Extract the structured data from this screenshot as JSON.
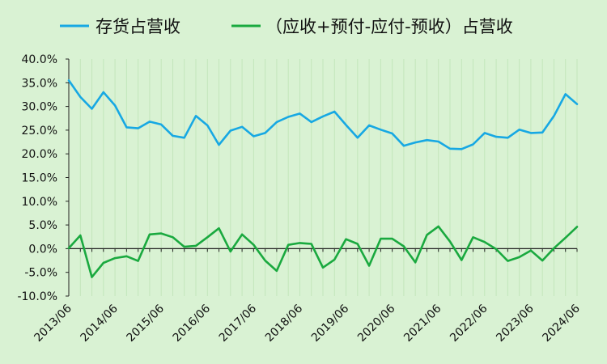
{
  "chart_data": {
    "type": "line",
    "x": [
      "2013/06",
      "2013/09",
      "2013/12",
      "2014/03",
      "2014/06",
      "2014/09",
      "2014/12",
      "2015/03",
      "2015/06",
      "2015/09",
      "2015/12",
      "2016/03",
      "2016/06",
      "2016/09",
      "2016/12",
      "2017/03",
      "2017/06",
      "2017/09",
      "2017/12",
      "2018/03",
      "2018/06",
      "2018/09",
      "2018/12",
      "2019/03",
      "2019/06",
      "2019/09",
      "2019/12",
      "2020/03",
      "2020/06",
      "2020/09",
      "2020/12",
      "2021/03",
      "2021/06",
      "2021/09",
      "2021/12",
      "2022/03",
      "2022/06",
      "2022/09",
      "2022/12",
      "2023/03",
      "2023/06",
      "2023/09",
      "2023/12",
      "2024/03",
      "2024/06"
    ],
    "x_tick_labels": [
      "2013/06",
      "2014/06",
      "2015/06",
      "2016/06",
      "2017/06",
      "2018/06",
      "2019/06",
      "2020/06",
      "2021/06",
      "2022/06",
      "2023/06",
      "2024/06"
    ],
    "series": [
      {
        "name": "存货占营收",
        "color": "#17a8e3",
        "values": [
          35.5,
          32.0,
          29.5,
          33.0,
          30.2,
          25.6,
          25.4,
          26.8,
          26.2,
          23.8,
          23.4,
          28.0,
          26.0,
          21.9,
          24.9,
          25.7,
          23.7,
          24.4,
          26.7,
          27.8,
          28.5,
          26.7,
          27.9,
          28.9,
          26.1,
          23.4,
          26.0,
          25.1,
          24.3,
          21.7,
          22.4,
          22.9,
          22.6,
          21.1,
          21.0,
          22.0,
          24.4,
          23.6,
          23.4,
          25.1,
          24.4,
          24.5,
          28.0,
          32.6,
          30.5
        ]
      },
      {
        "name": "（应收+预付-应付-预收）占营收",
        "color": "#1aa93f",
        "values": [
          0.1,
          2.8,
          -6.0,
          -3.0,
          -2.0,
          -1.6,
          -2.6,
          3.0,
          3.2,
          2.4,
          0.4,
          0.6,
          2.4,
          4.3,
          -0.6,
          3.0,
          0.8,
          -2.5,
          -4.7,
          0.8,
          1.2,
          1.0,
          -4.0,
          -2.3,
          2.0,
          1.0,
          -3.6,
          2.1,
          2.1,
          0.5,
          -2.9,
          2.9,
          4.7,
          1.5,
          -2.4,
          2.4,
          1.4,
          -0.1,
          -2.6,
          -1.8,
          -0.4,
          -2.5,
          0.1,
          2.3,
          4.6
        ]
      }
    ],
    "y_tick_labels": [
      "40.0%",
      "35.0%",
      "30.0%",
      "25.0%",
      "20.0%",
      "15.0%",
      "10.0%",
      "5.0%",
      "0.0%",
      "-5.0%",
      "-10.0%"
    ],
    "ylim": [
      -10,
      40
    ],
    "legend_position": "top",
    "grid": "vertical-faint"
  }
}
